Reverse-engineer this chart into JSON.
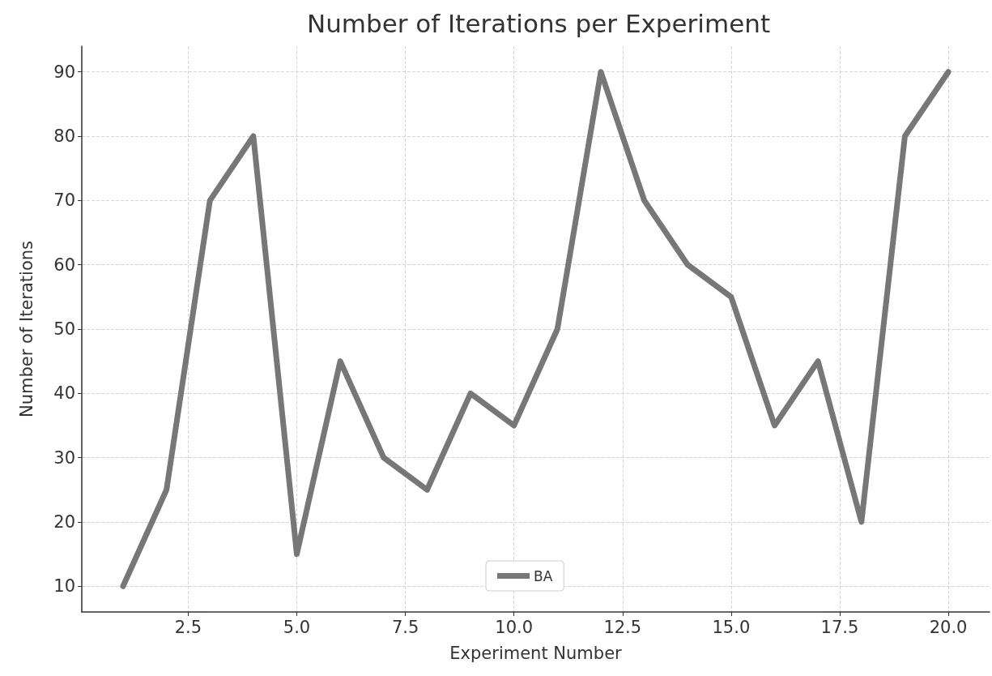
{
  "chart_data": {
    "type": "line",
    "title": "Number of Iterations per Experiment",
    "xlabel": "Experiment Number",
    "ylabel": "Number of Iterations",
    "x": [
      1,
      2,
      3,
      4,
      5,
      6,
      7,
      8,
      9,
      10,
      11,
      12,
      13,
      14,
      15,
      16,
      17,
      18,
      19,
      20
    ],
    "series": [
      {
        "name": "BA",
        "color": "#777777",
        "values": [
          10,
          25,
          70,
          80,
          15,
          45,
          30,
          25,
          40,
          35,
          50,
          90,
          70,
          60,
          55,
          35,
          45,
          20,
          80,
          90
        ]
      }
    ],
    "xlim": [
      0.05,
      20.95
    ],
    "xticks": [
      2.5,
      {
        "value": 5,
        "label": "5.0"
      },
      7.5,
      {
        "value": 10,
        "label": "10.0"
      },
      12.5,
      {
        "value": 15,
        "label": "15.0"
      },
      17.5,
      {
        "value": 20,
        "label": "20.0"
      }
    ],
    "ylim": [
      6,
      94
    ],
    "yticks": [
      10,
      20,
      30,
      40,
      50,
      60,
      70,
      80,
      90
    ],
    "grid": true,
    "legend": "bottom",
    "marker": "none",
    "line_style": "solid"
  }
}
